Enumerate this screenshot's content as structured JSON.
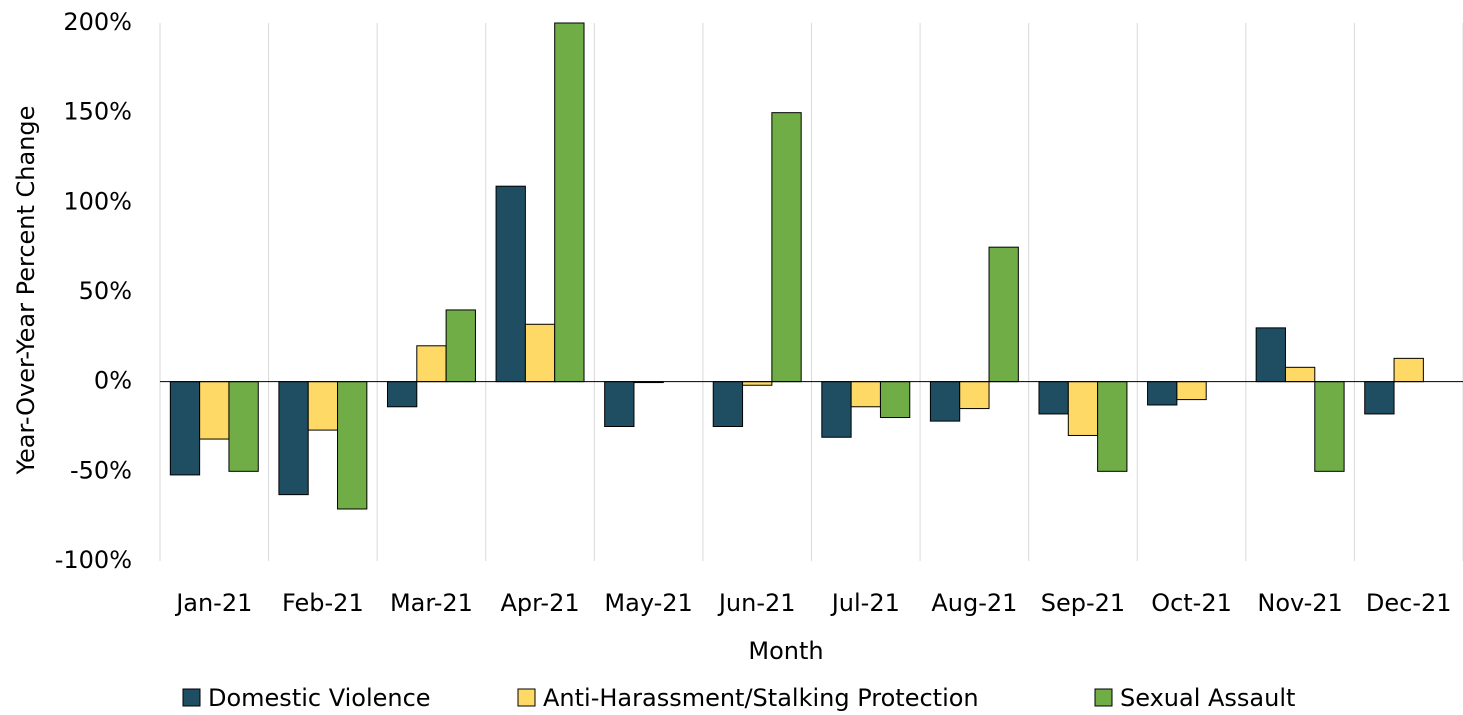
{
  "chart_data": {
    "type": "bar",
    "x_label": "Month",
    "y_label": "Year-Over-Year Percent Change",
    "categories": [
      "Jan-21",
      "Feb-21",
      "Mar-21",
      "Apr-21",
      "May-21",
      "Jun-21",
      "Jul-21",
      "Aug-21",
      "Sep-21",
      "Oct-21",
      "Nov-21",
      "Dec-21"
    ],
    "series": [
      {
        "name": "Domestic Violence",
        "color": "#1f4e63",
        "values": [
          -52,
          -63,
          -14,
          109,
          -25,
          -25,
          -31,
          -22,
          -18,
          -13,
          30,
          -18
        ]
      },
      {
        "name": "Anti-Harassment/Stalking Protection",
        "color": "#ffd966",
        "values": [
          -32,
          -27,
          20,
          32,
          -0.5,
          -2,
          -14,
          -15,
          -30,
          -10,
          8,
          13
        ]
      },
      {
        "name": "Sexual Assault",
        "color": "#70ad47",
        "values": [
          -50,
          -71,
          40,
          200,
          0,
          150,
          -20,
          75,
          -50,
          0,
          -50,
          0
        ]
      }
    ],
    "ylim": [
      -100,
      200
    ],
    "yticks": [
      {
        "value": -100,
        "label": "-100%"
      },
      {
        "value": -50,
        "label": "-50%"
      },
      {
        "value": 0,
        "label": "0%"
      },
      {
        "value": 50,
        "label": "50%"
      },
      {
        "value": 100,
        "label": "100%"
      },
      {
        "value": 150,
        "label": "150%"
      },
      {
        "value": 200,
        "label": "200%"
      }
    ],
    "legend": "bottom"
  }
}
